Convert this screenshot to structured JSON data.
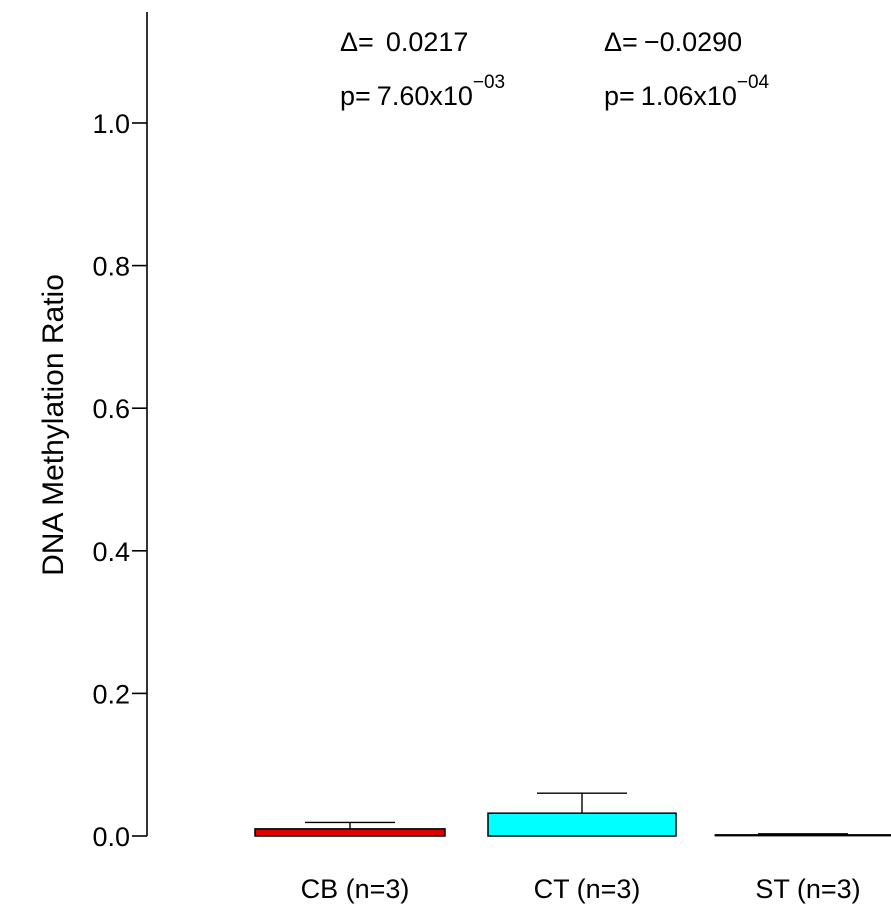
{
  "chart_data": {
    "type": "bar",
    "title": "",
    "xlabel": "",
    "ylabel": "DNA Methylation Ratio",
    "ylim": [
      0,
      1.0
    ],
    "yticks": [
      "0.0",
      "0.2",
      "0.4",
      "0.6",
      "0.8",
      "1.0"
    ],
    "ytick_values": [
      0.0,
      0.2,
      0.4,
      0.6,
      0.8,
      1.0
    ],
    "categories": [
      "CB (n=3)",
      "CT (n=3)",
      "ST (n=3)"
    ],
    "values": [
      0.01,
      0.032,
      0.002
    ],
    "error_upper": [
      0.019,
      0.06,
      0.003
    ],
    "colors": [
      "#e00000",
      "#00ffff",
      "#000000"
    ],
    "grid": false,
    "legend": "none",
    "annotations": [
      {
        "delta_label": "Δ=",
        "delta_value": "0.0217",
        "p_label": "p=",
        "p_mantissa": "7.60x10",
        "p_exponent": "−03"
      },
      {
        "delta_label": "Δ=",
        "delta_value": "−0.0290",
        "p_label": "p=",
        "p_mantissa": "1.06x10",
        "p_exponent": "−04"
      }
    ]
  }
}
